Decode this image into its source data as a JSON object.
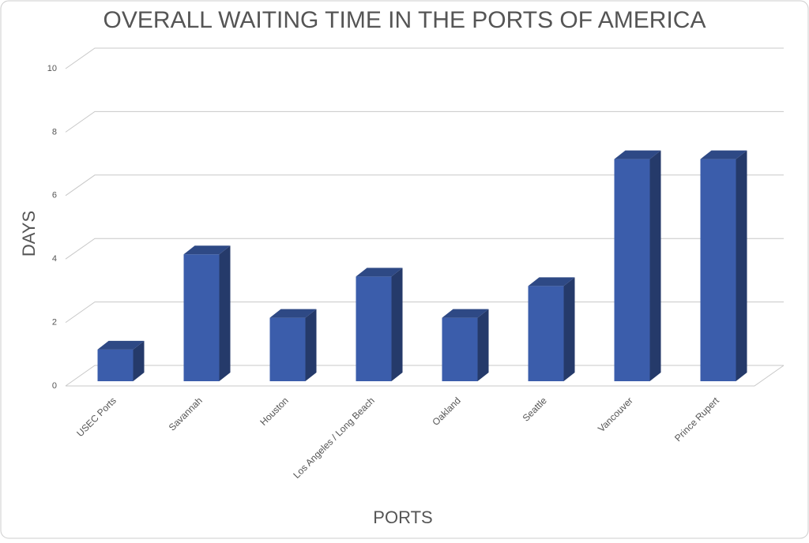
{
  "chart_data": {
    "type": "bar3d",
    "title": "OVERALL WAITING TIME IN THE PORTS OF AMERICA",
    "x_label": "PORTS",
    "y_label": "DAYS",
    "categories": [
      "USEC Ports",
      "Savannah",
      "Houston",
      "Los Angeles / Long Beach",
      "Oakland",
      "Seattle",
      "Vancouver",
      "Prince Rupert"
    ],
    "values": [
      1,
      4,
      2,
      3.3,
      2,
      3,
      7,
      7
    ],
    "color": "#3b5dab",
    "ylim": [
      0,
      10
    ],
    "yticks": [
      0,
      2,
      4,
      6,
      8,
      10
    ],
    "grid": true
  }
}
